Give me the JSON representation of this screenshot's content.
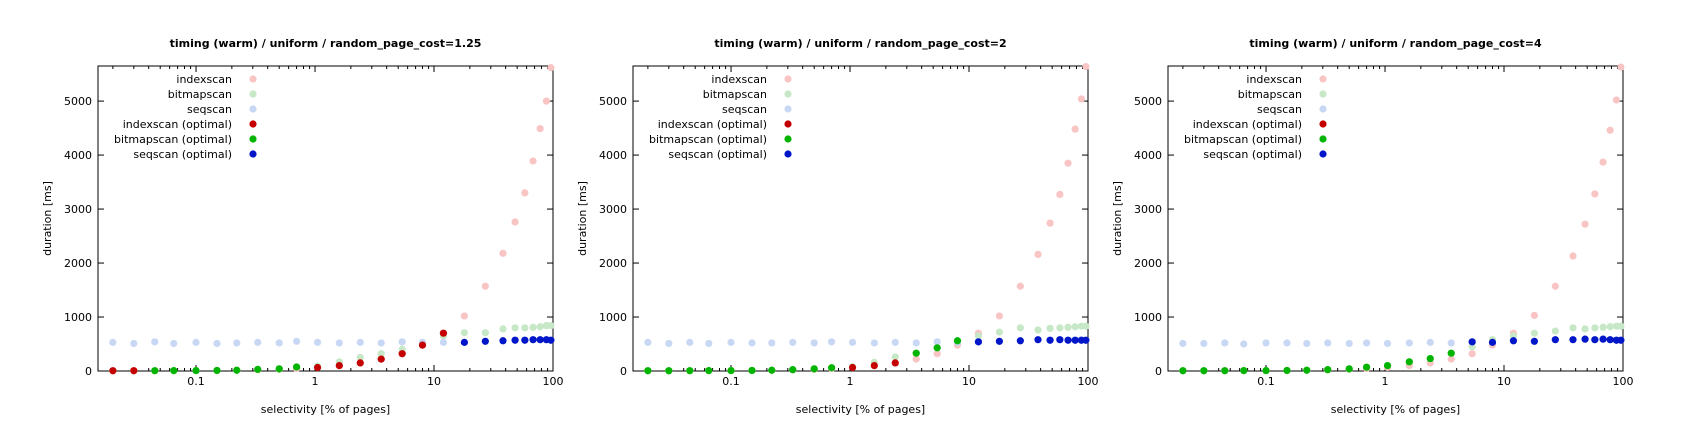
{
  "colors": {
    "indexscan": "#f8c4c4",
    "bitmapscan": "#c6e8c6",
    "seqscan": "#c8d8f4",
    "indexscan (optimal)": "#c40000",
    "bitmapscan (optimal)": "#00b400",
    "seqscan (optimal)": "#0016c8"
  },
  "chart_data": [
    {
      "type": "scatter",
      "title": "timing (warm) / uniform / random_page_cost=1.25",
      "xlabel": "selectivity [% of pages]",
      "ylabel": "duration [ms]",
      "xscale": "log",
      "xlim": [
        0.015,
        100
      ],
      "ylim": [
        0,
        5650
      ],
      "xticks": [
        {
          "v": 0.1,
          "label": "0.1"
        },
        {
          "v": 1,
          "label": "1"
        },
        {
          "v": 10,
          "label": "10"
        },
        {
          "v": 100,
          "label": "100"
        }
      ],
      "yticks": [
        {
          "v": 0,
          "label": "0"
        },
        {
          "v": 1000,
          "label": "1000"
        },
        {
          "v": 2000,
          "label": "2000"
        },
        {
          "v": 3000,
          "label": "3000"
        },
        {
          "v": 4000,
          "label": "4000"
        },
        {
          "v": 5000,
          "label": "5000"
        }
      ],
      "grid": false,
      "legend_position": "top-left",
      "x": [
        0.02,
        0.03,
        0.045,
        0.065,
        0.1,
        0.15,
        0.22,
        0.33,
        0.5,
        0.7,
        1.05,
        1.6,
        2.4,
        3.6,
        5.4,
        8,
        12,
        18,
        27,
        38,
        48,
        58,
        68,
        78,
        88,
        96
      ],
      "series": [
        {
          "name": "indexscan",
          "values": [
            5,
            5,
            6,
            7,
            8,
            10,
            14,
            20,
            30,
            45,
            65,
            100,
            150,
            220,
            320,
            480,
            700,
            1020,
            1570,
            2180,
            2760,
            3300,
            3890,
            4490,
            5000,
            5620
          ]
        },
        {
          "name": "bitmapscan",
          "values": [
            5,
            5,
            6,
            7,
            8,
            10,
            14,
            30,
            40,
            75,
            90,
            170,
            250,
            320,
            400,
            480,
            650,
            710,
            710,
            780,
            800,
            800,
            810,
            820,
            840,
            840
          ]
        },
        {
          "name": "seqscan",
          "values": [
            530,
            510,
            540,
            510,
            530,
            510,
            520,
            530,
            520,
            550,
            530,
            520,
            530,
            520,
            540,
            530,
            530,
            530,
            550,
            560,
            570,
            570,
            580,
            580,
            580,
            570
          ]
        },
        {
          "name": "indexscan (optimal)",
          "values": [
            5,
            5,
            null,
            null,
            null,
            null,
            null,
            null,
            null,
            null,
            65,
            100,
            150,
            220,
            320,
            480,
            700,
            null,
            null,
            null,
            null,
            null,
            null,
            null,
            null,
            null
          ]
        },
        {
          "name": "bitmapscan (optimal)",
          "values": [
            null,
            null,
            6,
            7,
            8,
            10,
            14,
            30,
            40,
            75,
            null,
            null,
            null,
            null,
            null,
            null,
            null,
            null,
            null,
            null,
            null,
            null,
            null,
            null,
            null,
            null
          ]
        },
        {
          "name": "seqscan (optimal)",
          "values": [
            null,
            null,
            null,
            null,
            null,
            null,
            null,
            null,
            null,
            null,
            null,
            null,
            null,
            null,
            null,
            null,
            null,
            530,
            550,
            560,
            570,
            570,
            580,
            580,
            580,
            570
          ]
        }
      ]
    },
    {
      "type": "scatter",
      "title": "timing (warm) / uniform / random_page_cost=2",
      "xlabel": "selectivity [% of pages]",
      "ylabel": "duration [ms]",
      "xscale": "log",
      "xlim": [
        0.015,
        100
      ],
      "ylim": [
        0,
        5650
      ],
      "xticks": [
        {
          "v": 0.1,
          "label": "0.1"
        },
        {
          "v": 1,
          "label": "1"
        },
        {
          "v": 10,
          "label": "10"
        },
        {
          "v": 100,
          "label": "100"
        }
      ],
      "yticks": [
        {
          "v": 0,
          "label": "0"
        },
        {
          "v": 1000,
          "label": "1000"
        },
        {
          "v": 2000,
          "label": "2000"
        },
        {
          "v": 3000,
          "label": "3000"
        },
        {
          "v": 4000,
          "label": "4000"
        },
        {
          "v": 5000,
          "label": "5000"
        }
      ],
      "grid": false,
      "legend_position": "top-left",
      "x": [
        0.02,
        0.03,
        0.045,
        0.065,
        0.1,
        0.15,
        0.22,
        0.33,
        0.5,
        0.7,
        1.05,
        1.6,
        2.4,
        3.6,
        5.4,
        8,
        12,
        18,
        27,
        38,
        48,
        58,
        68,
        78,
        88,
        96
      ],
      "series": [
        {
          "name": "indexscan",
          "values": [
            5,
            5,
            6,
            7,
            8,
            10,
            14,
            20,
            30,
            45,
            65,
            100,
            150,
            220,
            320,
            480,
            700,
            1020,
            1570,
            2160,
            2740,
            3270,
            3850,
            4480,
            5040,
            5640
          ]
        },
        {
          "name": "bitmapscan",
          "values": [
            5,
            5,
            6,
            7,
            8,
            10,
            14,
            25,
            40,
            60,
            80,
            160,
            260,
            330,
            430,
            560,
            650,
            720,
            800,
            760,
            790,
            800,
            810,
            820,
            830,
            830
          ]
        },
        {
          "name": "seqscan",
          "values": [
            530,
            510,
            530,
            510,
            530,
            520,
            520,
            530,
            520,
            540,
            530,
            520,
            530,
            520,
            540,
            530,
            540,
            550,
            560,
            580,
            570,
            580,
            570,
            570,
            570,
            570
          ]
        },
        {
          "name": "indexscan (optimal)",
          "values": [
            null,
            null,
            null,
            null,
            null,
            null,
            null,
            null,
            null,
            null,
            65,
            100,
            150,
            null,
            null,
            null,
            null,
            null,
            null,
            null,
            null,
            null,
            null,
            null,
            null,
            null
          ]
        },
        {
          "name": "bitmapscan (optimal)",
          "values": [
            5,
            5,
            6,
            7,
            8,
            10,
            14,
            25,
            40,
            60,
            null,
            null,
            null,
            330,
            430,
            560,
            null,
            null,
            null,
            null,
            null,
            null,
            null,
            null,
            null,
            null
          ]
        },
        {
          "name": "seqscan (optimal)",
          "values": [
            null,
            null,
            null,
            null,
            null,
            null,
            null,
            null,
            null,
            null,
            null,
            null,
            null,
            null,
            null,
            null,
            540,
            550,
            560,
            580,
            570,
            580,
            570,
            570,
            570,
            570
          ]
        }
      ]
    },
    {
      "type": "scatter",
      "title": "timing (warm) / uniform / random_page_cost=4",
      "xlabel": "selectivity [% of pages]",
      "ylabel": "duration [ms]",
      "xscale": "log",
      "xlim": [
        0.015,
        100
      ],
      "ylim": [
        0,
        5650
      ],
      "xticks": [
        {
          "v": 0.1,
          "label": "0.1"
        },
        {
          "v": 1,
          "label": "1"
        },
        {
          "v": 10,
          "label": "10"
        },
        {
          "v": 100,
          "label": "100"
        }
      ],
      "yticks": [
        {
          "v": 0,
          "label": "0"
        },
        {
          "v": 1000,
          "label": "1000"
        },
        {
          "v": 2000,
          "label": "2000"
        },
        {
          "v": 3000,
          "label": "3000"
        },
        {
          "v": 4000,
          "label": "4000"
        },
        {
          "v": 5000,
          "label": "5000"
        }
      ],
      "grid": false,
      "legend_position": "top-left",
      "x": [
        0.02,
        0.03,
        0.045,
        0.065,
        0.1,
        0.15,
        0.22,
        0.33,
        0.5,
        0.7,
        1.05,
        1.6,
        2.4,
        3.6,
        5.4,
        8,
        12,
        18,
        27,
        38,
        48,
        58,
        68,
        78,
        88,
        96
      ],
      "series": [
        {
          "name": "indexscan",
          "values": [
            5,
            5,
            6,
            7,
            8,
            10,
            14,
            20,
            30,
            45,
            65,
            100,
            150,
            220,
            320,
            480,
            700,
            1030,
            1570,
            2130,
            2720,
            3280,
            3870,
            4460,
            5020,
            5630
          ]
        },
        {
          "name": "bitmapscan",
          "values": [
            5,
            5,
            6,
            7,
            8,
            10,
            14,
            25,
            40,
            70,
            100,
            170,
            230,
            330,
            450,
            580,
            650,
            700,
            740,
            800,
            780,
            800,
            810,
            820,
            830,
            830
          ]
        },
        {
          "name": "seqscan",
          "values": [
            510,
            510,
            520,
            500,
            520,
            520,
            510,
            520,
            510,
            520,
            510,
            520,
            530,
            520,
            540,
            530,
            560,
            550,
            580,
            580,
            590,
            580,
            590,
            580,
            570,
            570
          ]
        },
        {
          "name": "indexscan (optimal)",
          "values": [
            null,
            null,
            null,
            null,
            null,
            null,
            null,
            null,
            null,
            null,
            null,
            null,
            null,
            null,
            null,
            null,
            null,
            null,
            null,
            null,
            null,
            null,
            null,
            null,
            null,
            null
          ]
        },
        {
          "name": "bitmapscan (optimal)",
          "values": [
            5,
            5,
            6,
            7,
            8,
            10,
            14,
            25,
            40,
            70,
            100,
            170,
            230,
            330,
            null,
            null,
            null,
            null,
            null,
            null,
            null,
            null,
            null,
            null,
            null,
            null
          ]
        },
        {
          "name": "seqscan (optimal)",
          "values": [
            null,
            null,
            null,
            null,
            null,
            null,
            null,
            null,
            null,
            null,
            null,
            null,
            null,
            null,
            540,
            530,
            560,
            550,
            580,
            580,
            590,
            580,
            590,
            580,
            570,
            570
          ]
        }
      ]
    }
  ]
}
